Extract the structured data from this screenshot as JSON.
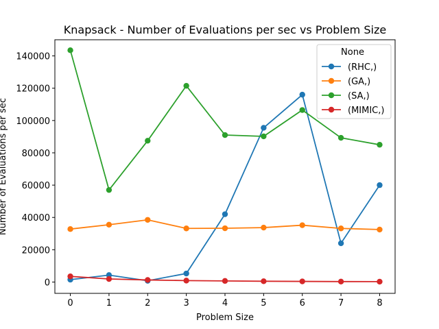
{
  "chart_data": {
    "type": "line",
    "title": "Knapsack - Number of Evaluations per sec vs Problem Size",
    "xlabel": "Problem Size",
    "ylabel": "Number of Evaluations per sec",
    "x": [
      0,
      1,
      2,
      3,
      4,
      5,
      6,
      7,
      8
    ],
    "xlim": [
      -0.4,
      8.4
    ],
    "ylim": [
      -7000,
      150000
    ],
    "xticks": [
      0,
      1,
      2,
      3,
      4,
      5,
      6,
      7,
      8
    ],
    "yticks": [
      0,
      20000,
      40000,
      60000,
      80000,
      100000,
      120000,
      140000
    ],
    "grid": false,
    "legend": {
      "title": "None",
      "placement": "top-right"
    },
    "series": [
      {
        "name": "(RHC,)",
        "color": "#1f77b4",
        "values": [
          1500,
          4300,
          800,
          5300,
          42000,
          95500,
          116000,
          24000,
          60000
        ]
      },
      {
        "name": "(GA,)",
        "color": "#ff7f0e",
        "values": [
          32800,
          35500,
          38500,
          33200,
          33300,
          33700,
          35200,
          33200,
          32500
        ]
      },
      {
        "name": "(SA,)",
        "color": "#2ca02c",
        "values": [
          143500,
          57000,
          87500,
          121500,
          91000,
          90200,
          106500,
          89300,
          85000
        ]
      },
      {
        "name": "(MIMIC,)",
        "color": "#d62728",
        "values": [
          3500,
          1900,
          1300,
          900,
          700,
          500,
          400,
          300,
          250
        ]
      }
    ]
  }
}
